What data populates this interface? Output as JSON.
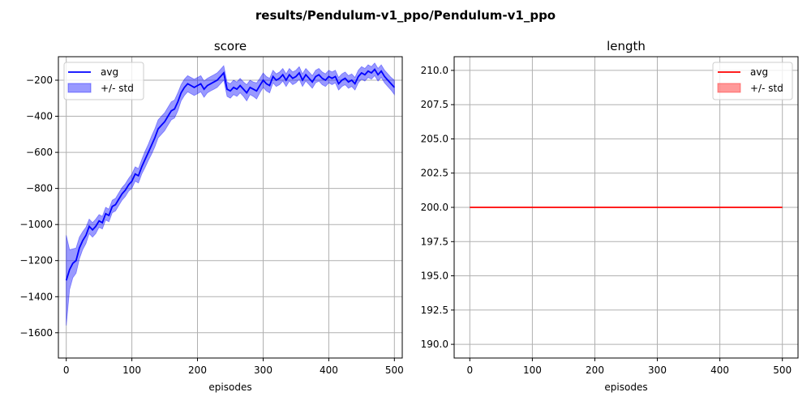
{
  "suptitle": "results/Pendulum-v1_ppo/Pendulum-v1_ppo",
  "colors": {
    "score": "#0000ff",
    "length": "#ff0000",
    "grid": "#b0b0b0"
  },
  "chart_data": [
    {
      "type": "line",
      "title": "score",
      "xlabel": "episodes",
      "ylabel": "",
      "xlim": [
        -12,
        512
      ],
      "ylim": [
        -1740,
        -70
      ],
      "xticks": [
        0,
        100,
        200,
        300,
        400,
        500
      ],
      "yticks": [
        -1600,
        -1400,
        -1200,
        -1000,
        -800,
        -600,
        -400,
        -200
      ],
      "grid": true,
      "legend": {
        "placement": "upper-left",
        "entries": [
          "avg",
          "+/- std"
        ]
      },
      "series": [
        {
          "name": "avg",
          "x": [
            0,
            5,
            10,
            15,
            20,
            25,
            30,
            35,
            40,
            45,
            50,
            55,
            60,
            65,
            70,
            75,
            80,
            85,
            90,
            95,
            100,
            105,
            110,
            115,
            120,
            125,
            130,
            135,
            140,
            145,
            150,
            155,
            160,
            165,
            170,
            175,
            180,
            185,
            190,
            195,
            200,
            205,
            210,
            215,
            220,
            225,
            230,
            235,
            240,
            245,
            250,
            255,
            260,
            265,
            270,
            275,
            280,
            285,
            290,
            295,
            300,
            305,
            310,
            315,
            320,
            325,
            330,
            335,
            340,
            345,
            350,
            355,
            360,
            365,
            370,
            375,
            380,
            385,
            390,
            395,
            400,
            405,
            410,
            415,
            420,
            425,
            430,
            435,
            440,
            445,
            450,
            455,
            460,
            465,
            470,
            475,
            480,
            485,
            490,
            495,
            500
          ],
          "avg": [
            -1310,
            -1250,
            -1215,
            -1200,
            -1130,
            -1090,
            -1060,
            -1010,
            -1030,
            -1010,
            -980,
            -990,
            -940,
            -950,
            -900,
            -890,
            -860,
            -830,
            -810,
            -780,
            -760,
            -720,
            -730,
            -680,
            -640,
            -600,
            -560,
            -520,
            -470,
            -450,
            -430,
            -400,
            -370,
            -360,
            -320,
            -270,
            -240,
            -220,
            -230,
            -240,
            -230,
            -220,
            -250,
            -230,
            -220,
            -210,
            -200,
            -180,
            -160,
            -250,
            -260,
            -240,
            -250,
            -230,
            -250,
            -270,
            -240,
            -250,
            -260,
            -230,
            -200,
            -220,
            -230,
            -180,
            -200,
            -190,
            -170,
            -200,
            -170,
            -190,
            -180,
            -160,
            -200,
            -170,
            -190,
            -210,
            -180,
            -170,
            -190,
            -200,
            -180,
            -190,
            -180,
            -220,
            -200,
            -190,
            -210,
            -200,
            -220,
            -180,
            -160,
            -170,
            -150,
            -160,
            -140,
            -170,
            -150,
            -180,
            -200,
            -220,
            -240
          ],
          "std": [
            250,
            110,
            80,
            70,
            60,
            50,
            45,
            40,
            40,
            40,
            35,
            35,
            35,
            35,
            35,
            35,
            35,
            35,
            35,
            35,
            40,
            40,
            40,
            40,
            45,
            45,
            50,
            50,
            50,
            50,
            50,
            50,
            50,
            50,
            50,
            45,
            45,
            45,
            45,
            45,
            45,
            45,
            45,
            40,
            40,
            40,
            40,
            40,
            40,
            40,
            40,
            40,
            40,
            40,
            40,
            45,
            40,
            40,
            45,
            40,
            40,
            40,
            40,
            35,
            35,
            35,
            35,
            35,
            35,
            35,
            35,
            35,
            35,
            35,
            35,
            35,
            35,
            35,
            35,
            35,
            35,
            35,
            35,
            35,
            35,
            35,
            35,
            35,
            35,
            35,
            35,
            35,
            35,
            35,
            35,
            35,
            35,
            35,
            35,
            35,
            40
          ]
        }
      ]
    },
    {
      "type": "line",
      "title": "length",
      "xlabel": "episodes",
      "ylabel": "",
      "xlim": [
        -25,
        525
      ],
      "ylim": [
        189,
        211
      ],
      "xticks": [
        0,
        100,
        200,
        300,
        400,
        500
      ],
      "yticks": [
        190.0,
        192.5,
        195.0,
        197.5,
        200.0,
        202.5,
        205.0,
        207.5,
        210.0
      ],
      "ytick_labels": [
        "190.0",
        "192.5",
        "195.0",
        "197.5",
        "200.0",
        "202.5",
        "205.0",
        "207.5",
        "210.0"
      ],
      "grid": true,
      "legend": {
        "placement": "upper-right",
        "entries": [
          "avg",
          "+/- std"
        ]
      },
      "series": [
        {
          "name": "avg",
          "x": [
            0,
            500
          ],
          "avg": [
            200,
            200
          ],
          "std": [
            0,
            0
          ]
        }
      ]
    }
  ]
}
